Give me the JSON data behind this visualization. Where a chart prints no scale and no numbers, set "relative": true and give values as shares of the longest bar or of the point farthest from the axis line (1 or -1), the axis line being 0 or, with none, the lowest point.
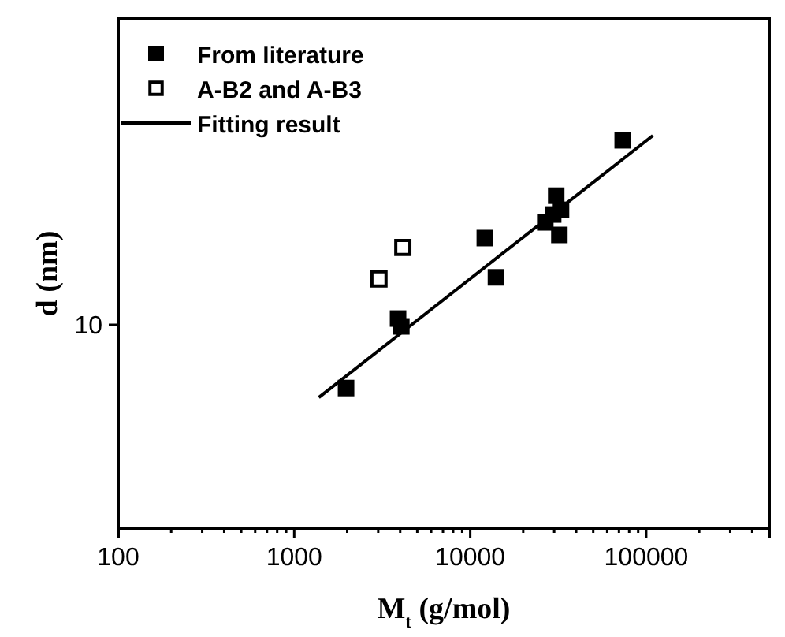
{
  "chart_data": {
    "type": "scatter",
    "xlabel": "M$_{t}$ (g/mol)",
    "ylabel": "d (nm)",
    "log": "x",
    "relative": true,
    "xlim": [
      100,
      500000
    ],
    "xticks": [
      100,
      {
        "value": 200,
        "label": null
      },
      {
        "value": 300,
        "label": null
      },
      {
        "value": 400,
        "label": null
      },
      {
        "value": 500,
        "label": null
      },
      {
        "value": 600,
        "label": null
      },
      {
        "value": 700,
        "label": null
      },
      {
        "value": 800,
        "label": null
      },
      {
        "value": 900,
        "label": null
      },
      1000,
      {
        "value": 2000,
        "label": null
      },
      {
        "value": 3000,
        "label": null
      },
      {
        "value": 4000,
        "label": null
      },
      {
        "value": 5000,
        "label": null
      },
      {
        "value": 6000,
        "label": null
      },
      {
        "value": 7000,
        "label": null
      },
      {
        "value": 8000,
        "label": null
      },
      {
        "value": 9000,
        "label": null
      },
      10000,
      {
        "value": 20000,
        "label": null
      },
      {
        "value": 30000,
        "label": null
      },
      {
        "value": 40000,
        "label": null
      },
      {
        "value": 50000,
        "label": null
      },
      {
        "value": 60000,
        "label": null
      },
      {
        "value": 70000,
        "label": null
      },
      {
        "value": 80000,
        "label": null
      },
      {
        "value": 90000,
        "label": null
      },
      100000,
      {
        "value": 200000,
        "label": null
      },
      {
        "value": 300000,
        "label": null
      },
      {
        "value": 400000,
        "label": null
      }
    ],
    "annotations": [
      "10"
    ],
    "legend": "top left",
    "marker": "square",
    "grid": false,
    "series": [
      {
        "name": "From literature",
        "color": "#000000",
        "x": [
          73500,
          30800,
          32800,
          29600,
          26700,
          32100,
          12100,
          14000,
          3890,
          4060,
          1970
        ],
        "values": [
          0.988,
          0.847,
          0.811,
          0.799,
          0.779,
          0.747,
          0.739,
          0.639,
          0.534,
          0.514,
          0.357
        ]
      },
      {
        "name": "A-B2 and A-B3",
        "color": "#000000",
        "x": [
          4140,
          3030
        ],
        "values": [
          0.715,
          0.635
        ]
      },
      {
        "name": "Fitting result",
        "type": "line",
        "marker": "none",
        "color": "#000000",
        "line_style": "solid",
        "x": [
          1380,
          109000
        ],
        "values": [
          0.333,
          1
        ]
      }
    ]
  }
}
